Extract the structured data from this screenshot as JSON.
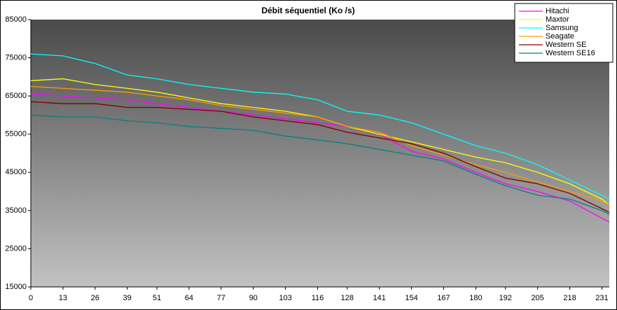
{
  "chart_data": {
    "type": "line",
    "title": "Débit séquentiel (Ko /s)",
    "x": [
      0,
      13,
      26,
      39,
      51,
      64,
      77,
      90,
      103,
      116,
      128,
      141,
      154,
      167,
      180,
      192,
      205,
      218,
      231,
      234
    ],
    "xlim": [
      0,
      234
    ],
    "xticks": [
      0,
      13,
      26,
      39,
      51,
      64,
      77,
      90,
      103,
      116,
      128,
      141,
      154,
      167,
      180,
      192,
      205,
      218,
      231
    ],
    "ylim": [
      15000,
      85000
    ],
    "yticks": [
      15000,
      25000,
      35000,
      45000,
      55000,
      65000,
      75000,
      85000
    ],
    "legend": "top-right",
    "grid": false,
    "series": [
      {
        "name": "Hitachi",
        "color": "#ff00ff",
        "values": [
          65500,
          65000,
          64500,
          64000,
          63000,
          62000,
          61000,
          60000,
          59000,
          58000,
          57000,
          55000,
          50500,
          48500,
          45000,
          42000,
          40000,
          37500,
          33000,
          32000
        ]
      },
      {
        "name": "Maxtor",
        "color": "#ffff00",
        "values": [
          69000,
          69500,
          68000,
          67000,
          66000,
          64500,
          63000,
          62000,
          61000,
          59500,
          57000,
          55000,
          53000,
          51000,
          49000,
          47500,
          45000,
          42000,
          38000,
          36500
        ]
      },
      {
        "name": "Samsung",
        "color": "#00ffff",
        "values": [
          76000,
          75500,
          73500,
          70500,
          69500,
          68000,
          67000,
          66000,
          65500,
          64000,
          61000,
          60000,
          58000,
          55000,
          52000,
          50000,
          47000,
          43000,
          39000,
          38000
        ]
      },
      {
        "name": "Seagate",
        "color": "#ff9900",
        "values": [
          67500,
          67000,
          66500,
          66000,
          65000,
          64000,
          62500,
          61500,
          60500,
          59500,
          57000,
          55500,
          52000,
          49500,
          47000,
          45000,
          42500,
          40000,
          37500,
          36500
        ]
      },
      {
        "name": "Western SE",
        "color": "#800000",
        "values": [
          63500,
          63000,
          63000,
          62000,
          62000,
          61500,
          61000,
          59500,
          58500,
          57500,
          55500,
          54000,
          52500,
          50000,
          46500,
          43500,
          42000,
          39500,
          35500,
          34500
        ]
      },
      {
        "name": "Western SE16",
        "color": "#008080",
        "values": [
          60000,
          59500,
          59500,
          58500,
          58000,
          57000,
          56500,
          56000,
          54500,
          53500,
          52500,
          51000,
          49500,
          48000,
          44500,
          41500,
          39000,
          38000,
          35000,
          34000
        ]
      }
    ]
  }
}
